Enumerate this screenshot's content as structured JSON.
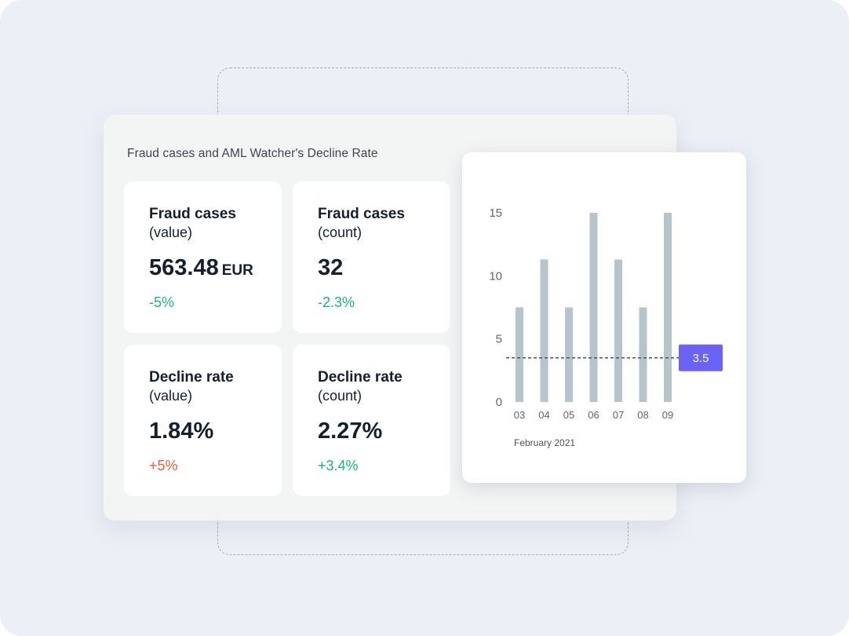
{
  "panel": {
    "title": "Fraud cases and AML Watcher's Decline Rate"
  },
  "cards": [
    {
      "title": "Fraud cases",
      "subtitle": "(value)",
      "value": "563.48",
      "unit": "EUR",
      "change": "-5%",
      "change_color": "#1cb481"
    },
    {
      "title": "Fraud cases",
      "subtitle": "(count)",
      "value": "32",
      "unit": "",
      "change": "-2.3%",
      "change_color": "#1cb481"
    },
    {
      "title": "Decline rate",
      "subtitle": "(value)",
      "value": "1.84%",
      "unit": "",
      "change": "+5%",
      "change_color": "#ef5a3c"
    },
    {
      "title": "Decline rate",
      "subtitle": "(count)",
      "value": "2.27%",
      "unit": "",
      "change": "+3.4%",
      "change_color": "#1cb481"
    }
  ],
  "chart_data": {
    "type": "bar",
    "categories": [
      "03",
      "04",
      "05",
      "06",
      "07",
      "08",
      "09"
    ],
    "values": [
      7.5,
      11.3,
      7.5,
      15,
      11.3,
      7.5,
      15
    ],
    "y_ticks": [
      "0",
      "5",
      "10",
      "15"
    ],
    "ylim": [
      0,
      15
    ],
    "xlabel": "February 2021",
    "reference_line": {
      "value": 3.5,
      "label": "3.5"
    },
    "bar_color": "#b6c5cc",
    "marker_color": "#6b63f6"
  }
}
